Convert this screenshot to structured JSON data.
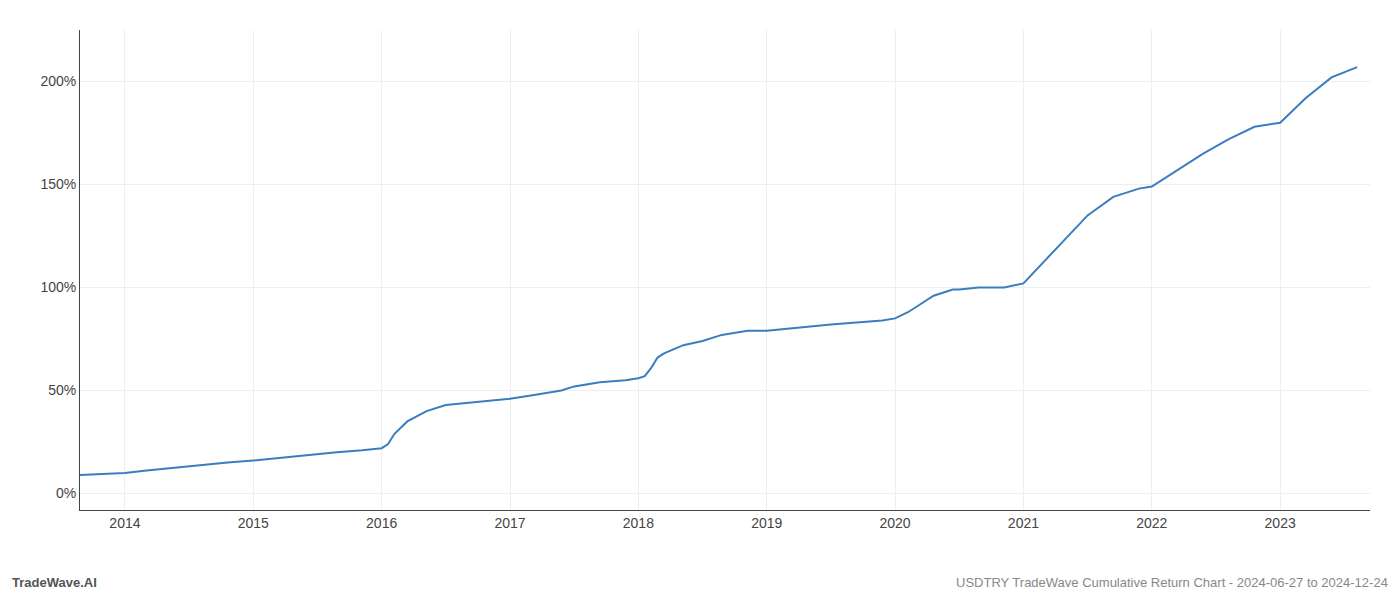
{
  "chart_data": {
    "type": "line",
    "title": "USDTRY TradeWave Cumulative Return Chart - 2024-06-27 to 2024-12-24",
    "annotations": [
      "TradeWave.AI"
    ],
    "x": [
      2013.65,
      2014.0,
      2014.15,
      2014.3,
      2014.5,
      2014.65,
      2014.8,
      2015.0,
      2015.15,
      2015.3,
      2015.5,
      2015.65,
      2015.85,
      2016.0,
      2016.05,
      2016.1,
      2016.2,
      2016.35,
      2016.5,
      2016.65,
      2016.85,
      2017.0,
      2017.2,
      2017.4,
      2017.5,
      2017.7,
      2017.9,
      2018.0,
      2018.05,
      2018.1,
      2018.15,
      2018.2,
      2018.35,
      2018.5,
      2018.65,
      2018.85,
      2019.0,
      2019.15,
      2019.35,
      2019.5,
      2019.7,
      2019.9,
      2020.0,
      2020.1,
      2020.2,
      2020.3,
      2020.45,
      2020.5,
      2020.65,
      2020.85,
      2021.0,
      2021.15,
      2021.3,
      2021.5,
      2021.7,
      2021.9,
      2022.0,
      2022.2,
      2022.4,
      2022.6,
      2022.8,
      2023.0,
      2023.2,
      2023.4,
      2023.6
    ],
    "values": [
      9,
      10,
      11,
      12,
      13,
      14,
      15,
      16,
      17,
      18,
      19,
      20,
      21,
      22,
      24,
      29,
      35,
      40,
      43,
      44,
      45,
      46,
      48,
      50,
      52,
      54,
      55,
      56,
      57,
      61,
      66,
      68,
      72,
      74,
      77,
      79,
      79,
      80,
      81,
      82,
      83,
      84,
      85,
      88,
      92,
      96,
      99,
      99,
      100,
      100,
      102,
      112,
      122,
      135,
      144,
      148,
      149,
      157,
      165,
      172,
      178,
      180,
      192,
      202,
      207
    ],
    "color": "#3a7ebf",
    "xlim": [
      2013.65,
      2023.7
    ],
    "xticks": [
      2014,
      2015,
      2016,
      2017,
      2018,
      2019,
      2020,
      2021,
      2022,
      2023
    ],
    "ylim": [
      -8,
      225
    ],
    "yticks": [
      {
        "value": 0,
        "label": "0%"
      },
      {
        "value": 50,
        "label": "50%"
      },
      {
        "value": 100,
        "label": "100%"
      },
      {
        "value": 150,
        "label": "150%"
      },
      {
        "value": 200,
        "label": "200%"
      }
    ],
    "grid": true
  }
}
